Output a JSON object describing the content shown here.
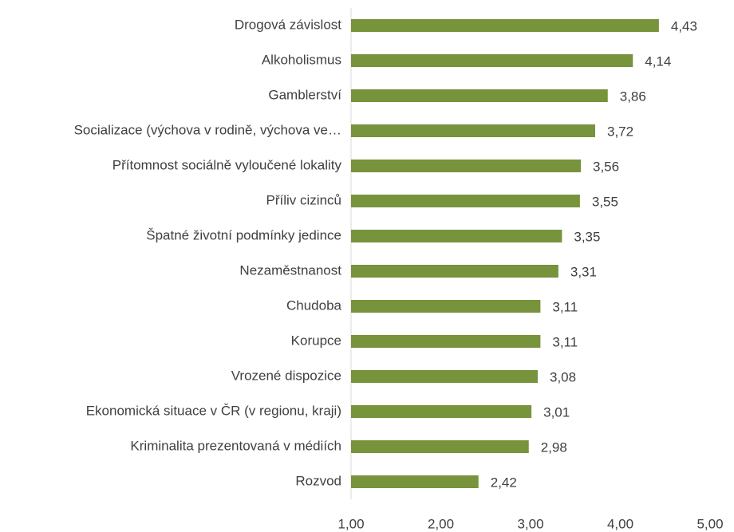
{
  "chart_data": {
    "type": "bar",
    "orientation": "horizontal",
    "categories": [
      "Drogová závislost",
      "Alkoholismus",
      "Gamblerství",
      "Socializace (výchova v rodině, výchova ve…",
      "Přítomnost sociálně vyloučené lokality",
      "Příliv cizinců",
      "Špatné životní podmínky jedince",
      "Nezaměstnanost",
      "Chudoba",
      "Korupce",
      "Vrozené dispozice",
      "Ekonomická situace v ČR (v regionu, kraji)",
      "Kriminalita prezentovaná v médiích",
      "Rozvod"
    ],
    "values": [
      4.43,
      4.14,
      3.86,
      3.72,
      3.56,
      3.55,
      3.35,
      3.31,
      3.11,
      3.11,
      3.08,
      3.01,
      2.98,
      2.42
    ],
    "value_labels": [
      "4,43",
      "4,14",
      "3,86",
      "3,72",
      "3,56",
      "3,55",
      "3,35",
      "3,31",
      "3,11",
      "3,11",
      "3,08",
      "3,01",
      "2,98",
      "2,42"
    ],
    "color": "#77933c",
    "xlim": [
      1,
      5
    ],
    "xticks": [
      {
        "value": 1,
        "label": "1,00"
      },
      {
        "value": 2,
        "label": "2,00"
      },
      {
        "value": 3,
        "label": "3,00"
      },
      {
        "value": 4,
        "label": "4,00"
      },
      {
        "value": 5,
        "label": "5,00"
      }
    ],
    "grid": false
  }
}
